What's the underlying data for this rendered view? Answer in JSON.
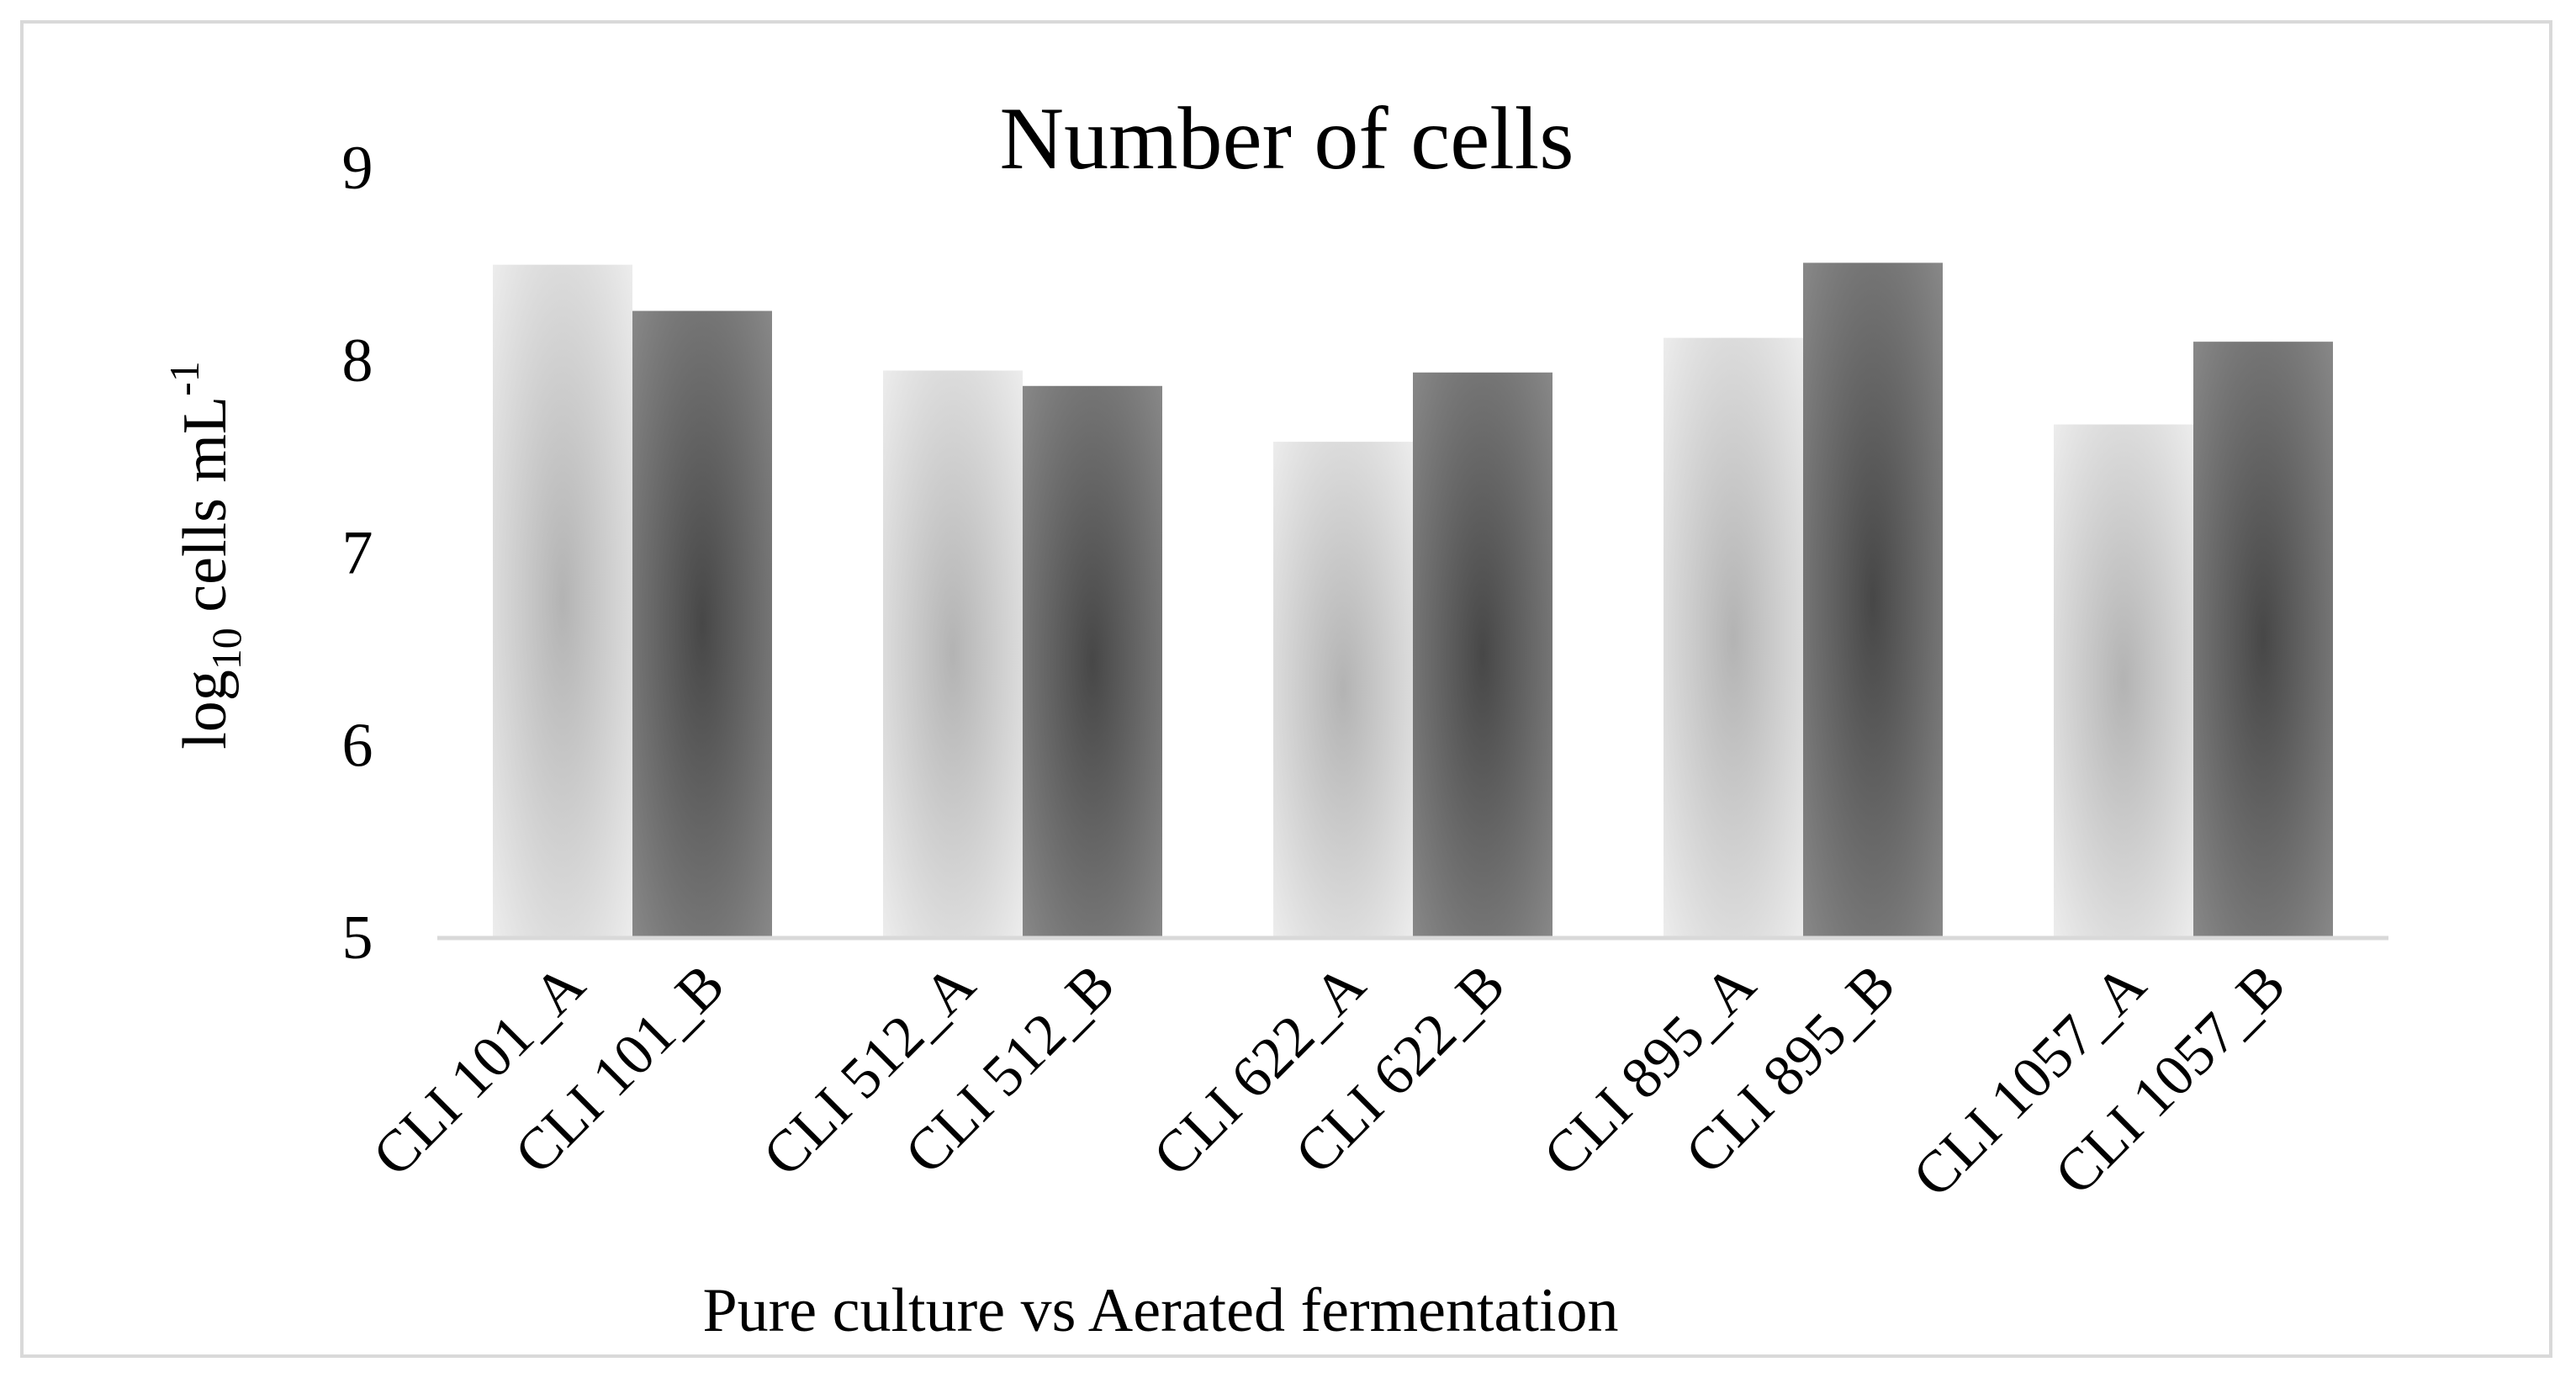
{
  "chart_data": {
    "type": "bar",
    "title": "Number of cells",
    "xlabel": "Pure culture vs Aerated fermentation",
    "ylabel": {
      "prefix": "log",
      "subscript": "10",
      "middle": " cells mL",
      "superscript": "-1"
    },
    "ylim": [
      5,
      9
    ],
    "yticks": [
      "5",
      "6",
      "7",
      "8",
      "9"
    ],
    "grid": false,
    "legend": "none",
    "categories": [
      "CLI 101_A",
      "CLI 101_B",
      "CLI 512_A",
      "CLI 512_B",
      "CLI 622_A",
      "CLI 622_B",
      "CLI 895_A",
      "CLI 895_B",
      "CLI 1057_A",
      "CLI 1057_B"
    ],
    "values": [
      8.49,
      8.25,
      7.94,
      7.86,
      7.57,
      7.93,
      8.11,
      8.5,
      7.66,
      8.09
    ],
    "series_kind": [
      "A",
      "B",
      "A",
      "B",
      "A",
      "B",
      "A",
      "B",
      "A",
      "B"
    ]
  },
  "colors": {
    "a_light": "#f0f0f0",
    "a_mid": "#bdbdbd",
    "b_light": "#8a8a8a",
    "b_mid": "#484848",
    "axis": "#d9d9d9",
    "frame": "#d9d9d9"
  }
}
